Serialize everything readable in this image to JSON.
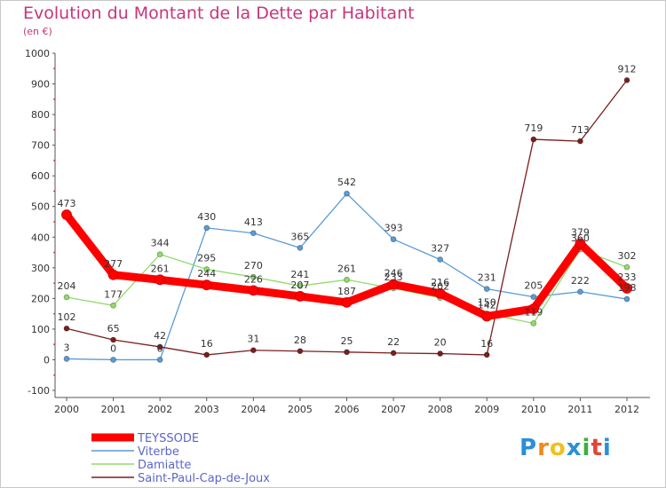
{
  "header": {
    "title": "Evolution du Montant de la Dette par Habitant",
    "unit": "(en €)"
  },
  "chart_data": {
    "type": "line",
    "title": "Evolution du Montant de la Dette par Habitant",
    "ylabel": "(en €)",
    "x": [
      "2000",
      "2001",
      "2002",
      "2003",
      "2004",
      "2005",
      "2006",
      "2007",
      "2008",
      "2009",
      "2010",
      "2011",
      "2012"
    ],
    "yticks": [
      -100,
      0,
      100,
      200,
      300,
      400,
      500,
      600,
      700,
      800,
      900,
      1000
    ],
    "ylim": [
      -100,
      1000
    ],
    "grid": false,
    "legend_position": "bottom-left",
    "series": [
      {
        "name": "TEYSSODE",
        "color": "#ff0000",
        "values": [
          473,
          277,
          261,
          244,
          226,
          207,
          187,
          246,
          216,
          142,
          166,
          379,
          233
        ],
        "labels": [
          "473",
          "277",
          "261",
          "244",
          "226",
          "207",
          "187",
          "246",
          "216",
          "142",
          "",
          "379",
          "233"
        ]
      },
      {
        "name": "Viterbe",
        "color": "#5a9bd5",
        "values": [
          3,
          0,
          0,
          430,
          413,
          365,
          542,
          393,
          327,
          231,
          205,
          222,
          198
        ],
        "labels": [
          "3",
          "0",
          "0",
          "430",
          "413",
          "365",
          "542",
          "393",
          "327",
          "231",
          "205",
          "222",
          "198"
        ]
      },
      {
        "name": "Damiatte",
        "color": "#8fdc6a",
        "values": [
          204,
          177,
          344,
          295,
          270,
          241,
          261,
          233,
          202,
          150,
          119,
          360,
          302
        ],
        "labels": [
          "204",
          "177",
          "344",
          "295",
          "270",
          "241",
          "261",
          "233",
          "202",
          "150",
          "119",
          "360",
          "302"
        ]
      },
      {
        "name": "Saint-Paul-Cap-de-Joux",
        "color": "#7a1f1f",
        "values": [
          102,
          65,
          42,
          16,
          31,
          28,
          25,
          22,
          20,
          16,
          719,
          713,
          912
        ],
        "labels": [
          "102",
          "65",
          "42",
          "16",
          "31",
          "28",
          "25",
          "22",
          "20",
          "16",
          "719",
          "713",
          "912"
        ]
      }
    ]
  },
  "logo": {
    "letters": [
      "P",
      "r",
      "o",
      "x",
      "i",
      "t",
      "i"
    ],
    "colors": [
      "#2a8fd6",
      "#f08a1a",
      "#f0c020",
      "#2a8fd6",
      "#3fae3f",
      "#e0463a",
      "#2a8fd6"
    ]
  }
}
